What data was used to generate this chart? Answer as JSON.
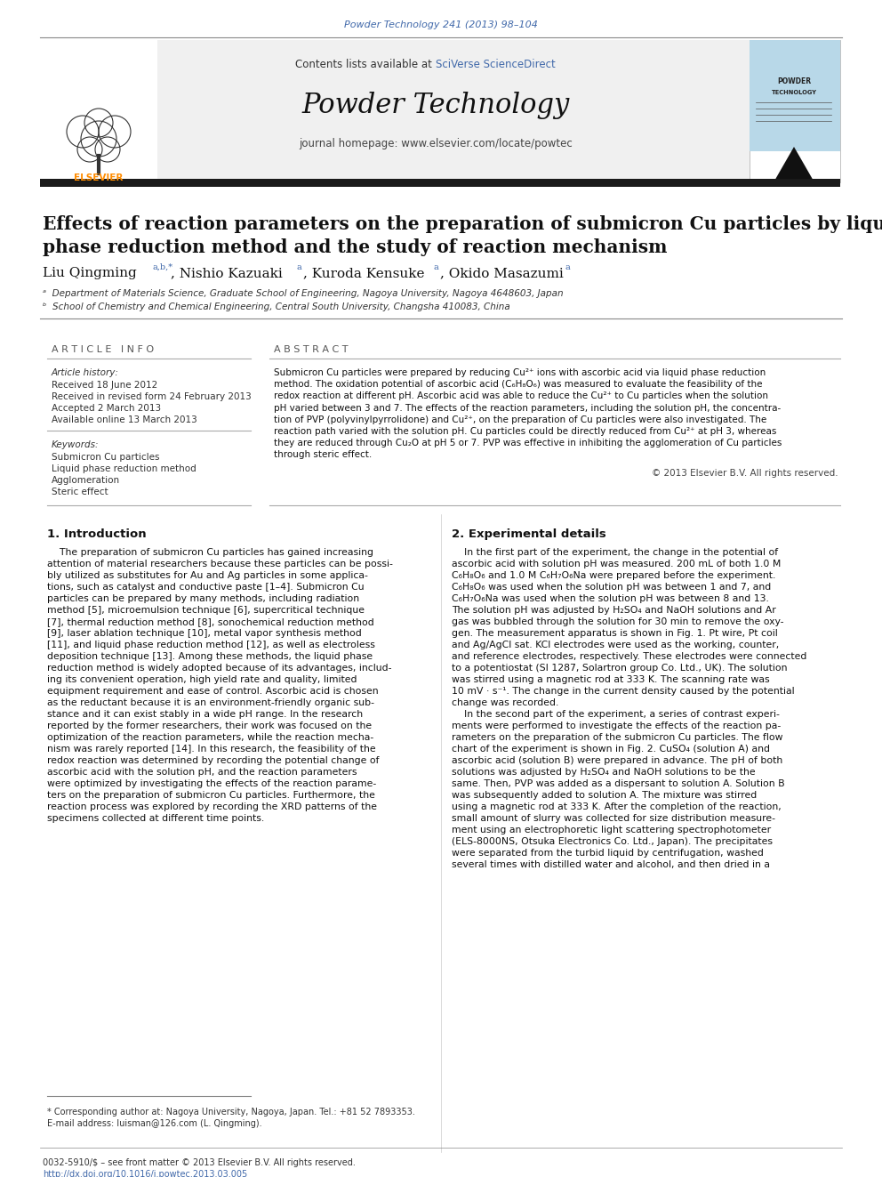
{
  "journal_ref": "Powder Technology 241 (2013) 98–104",
  "journal_ref_color": "#4169aa",
  "contents_text": "Contents lists available at ",
  "sciverse_text": "SciVerse ScienceDirect",
  "sciverse_color": "#4169aa",
  "journal_title": "Powder Technology",
  "journal_homepage": "journal homepage: www.elsevier.com/locate/powtec",
  "paper_title_line1": "Effects of reaction parameters on the preparation of submicron Cu particles by liquid",
  "paper_title_line2": "phase reduction method and the study of reaction mechanism",
  "affiliation_a": "ᵃ  Department of Materials Science, Graduate School of Engineering, Nagoya University, Nagoya 4648603, Japan",
  "affiliation_b": "ᵇ  School of Chemistry and Chemical Engineering, Central South University, Changsha 410083, China",
  "article_info_header": "A R T I C L E   I N F O",
  "abstract_header": "A B S T R A C T",
  "article_history_label": "Article history:",
  "received": "Received 18 June 2012",
  "revised": "Received in revised form 24 February 2013",
  "accepted": "Accepted 2 March 2013",
  "available": "Available online 13 March 2013",
  "keywords_label": "Keywords:",
  "keyword1": "Submicron Cu particles",
  "keyword2": "Liquid phase reduction method",
  "keyword3": "Agglomeration",
  "keyword4": "Steric effect",
  "copyright": "© 2013 Elsevier B.V. All rights reserved.",
  "section1_title": "1. Introduction",
  "section2_title": "2. Experimental details",
  "footnote_star": "* Corresponding author at: Nagoya University, Nagoya, Japan. Tel.: +81 52 7893353.",
  "footnote_email": "E-mail address: luisman@126.com (L. Qingming).",
  "footer_issn": "0032-5910/$ – see front matter © 2013 Elsevier B.V. All rights reserved.",
  "footer_doi": "http://dx.doi.org/10.1016/j.powtec.2013.03.005",
  "footer_doi_color": "#4169aa",
  "bg_color": "#ffffff",
  "header_bg": "#f0f0f0",
  "black_bar_color": "#1a1a1a",
  "text_color": "#000000",
  "link_color": "#4169aa",
  "abstract_lines": [
    "Submicron Cu particles were prepared by reducing Cu²⁺ ions with ascorbic acid via liquid phase reduction",
    "method. The oxidation potential of ascorbic acid (C₆H₈O₆) was measured to evaluate the feasibility of the",
    "redox reaction at different pH. Ascorbic acid was able to reduce the Cu²⁺ to Cu particles when the solution",
    "pH varied between 3 and 7. The effects of the reaction parameters, including the solution pH, the concentra-",
    "tion of PVP (polyvinylpyrrolidone) and Cu²⁺, on the preparation of Cu particles were also investigated. The",
    "reaction path varied with the solution pH. Cu particles could be directly reduced from Cu²⁺ at pH 3, whereas",
    "they are reduced through Cu₂O at pH 5 or 7. PVP was effective in inhibiting the agglomeration of Cu particles",
    "through steric effect."
  ],
  "intro_lines": [
    "    The preparation of submicron Cu particles has gained increasing",
    "attention of material researchers because these particles can be possi-",
    "bly utilized as substitutes for Au and Ag particles in some applica-",
    "tions, such as catalyst and conductive paste [1–4]. Submicron Cu",
    "particles can be prepared by many methods, including radiation",
    "method [5], microemulsion technique [6], supercritical technique",
    "[7], thermal reduction method [8], sonochemical reduction method",
    "[9], laser ablation technique [10], metal vapor synthesis method",
    "[11], and liquid phase reduction method [12], as well as electroless",
    "deposition technique [13]. Among these methods, the liquid phase",
    "reduction method is widely adopted because of its advantages, includ-",
    "ing its convenient operation, high yield rate and quality, limited",
    "equipment requirement and ease of control. Ascorbic acid is chosen",
    "as the reductant because it is an environment-friendly organic sub-",
    "stance and it can exist stably in a wide pH range. In the research",
    "reported by the former researchers, their work was focused on the",
    "optimization of the reaction parameters, while the reaction mecha-",
    "nism was rarely reported [14]. In this research, the feasibility of the",
    "redox reaction was determined by recording the potential change of",
    "ascorbic acid with the solution pH, and the reaction parameters",
    "were optimized by investigating the effects of the reaction parame-",
    "ters on the preparation of submicron Cu particles. Furthermore, the",
    "reaction process was explored by recording the XRD patterns of the",
    "specimens collected at different time points."
  ],
  "exp_lines": [
    "    In the first part of the experiment, the change in the potential of",
    "ascorbic acid with solution pH was measured. 200 mL of both 1.0 M",
    "C₆H₈O₆ and 1.0 M C₆H₇O₆Na were prepared before the experiment.",
    "C₆H₈O₆ was used when the solution pH was between 1 and 7, and",
    "C₆H₇O₆Na was used when the solution pH was between 8 and 13.",
    "The solution pH was adjusted by H₂SO₄ and NaOH solutions and Ar",
    "gas was bubbled through the solution for 30 min to remove the oxy-",
    "gen. The measurement apparatus is shown in Fig. 1. Pt wire, Pt coil",
    "and Ag/AgCl sat. KCl electrodes were used as the working, counter,",
    "and reference electrodes, respectively. These electrodes were connected",
    "to a potentiostat (SI 1287, Solartron group Co. Ltd., UK). The solution",
    "was stirred using a magnetic rod at 333 K. The scanning rate was",
    "10 mV · s⁻¹. The change in the current density caused by the potential",
    "change was recorded.",
    "    In the second part of the experiment, a series of contrast experi-",
    "ments were performed to investigate the effects of the reaction pa-",
    "rameters on the preparation of the submicron Cu particles. The flow",
    "chart of the experiment is shown in Fig. 2. CuSO₄ (solution A) and",
    "ascorbic acid (solution B) were prepared in advance. The pH of both",
    "solutions was adjusted by H₂SO₄ and NaOH solutions to be the",
    "same. Then, PVP was added as a dispersant to solution A. Solution B",
    "was subsequently added to solution A. The mixture was stirred",
    "using a magnetic rod at 333 K. After the completion of the reaction,",
    "small amount of slurry was collected for size distribution measure-",
    "ment using an electrophoretic light scattering spectrophotometer",
    "(ELS-8000NS, Otsuka Electronics Co. Ltd., Japan). The precipitates",
    "were separated from the turbid liquid by centrifugation, washed",
    "several times with distilled water and alcohol, and then dried in a"
  ]
}
